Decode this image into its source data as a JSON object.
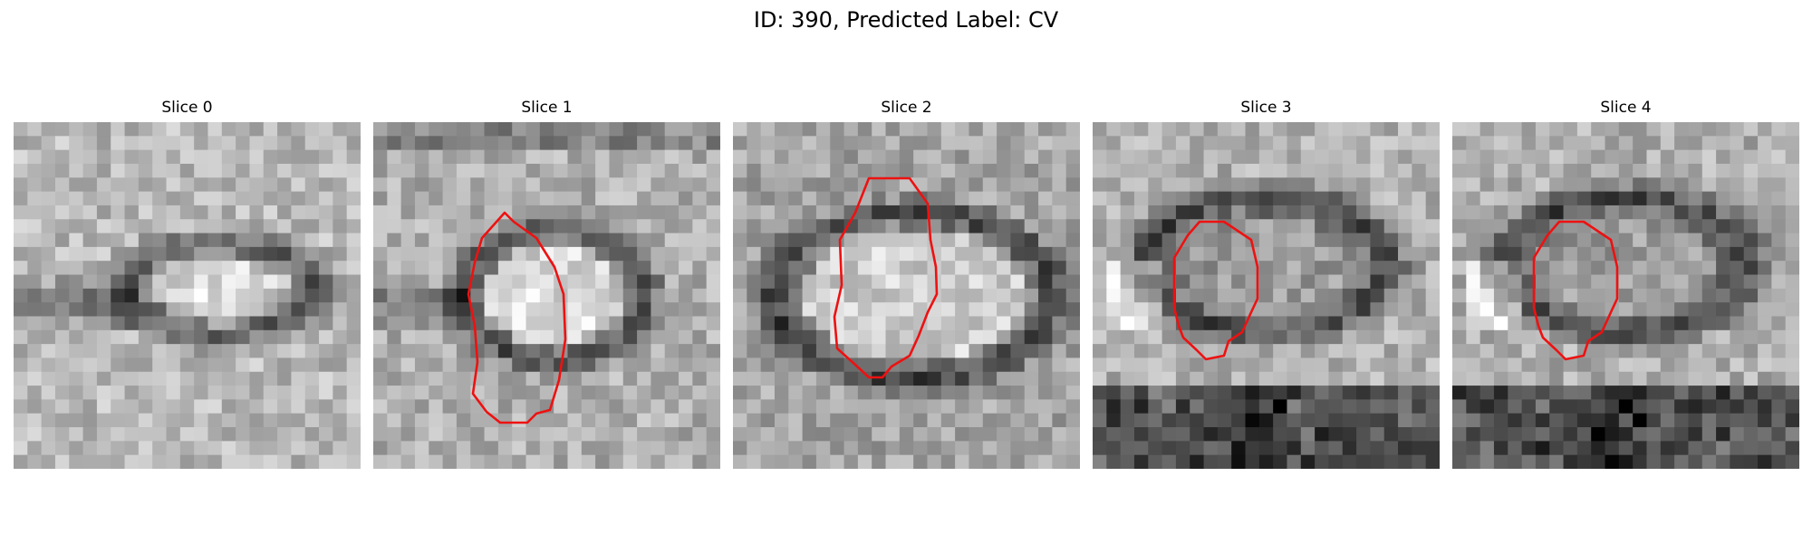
{
  "title": "ID: 390, Predicted Label: CV",
  "panels": [
    {
      "title": "Slice 0",
      "has_outline": false
    },
    {
      "title": "Slice 1",
      "has_outline": true
    },
    {
      "title": "Slice 2",
      "has_outline": true
    },
    {
      "title": "Slice 3",
      "has_outline": true
    },
    {
      "title": "Slice 4",
      "has_outline": true
    }
  ],
  "colors": {
    "outline": "#ee1111",
    "background": "#ffffff"
  }
}
